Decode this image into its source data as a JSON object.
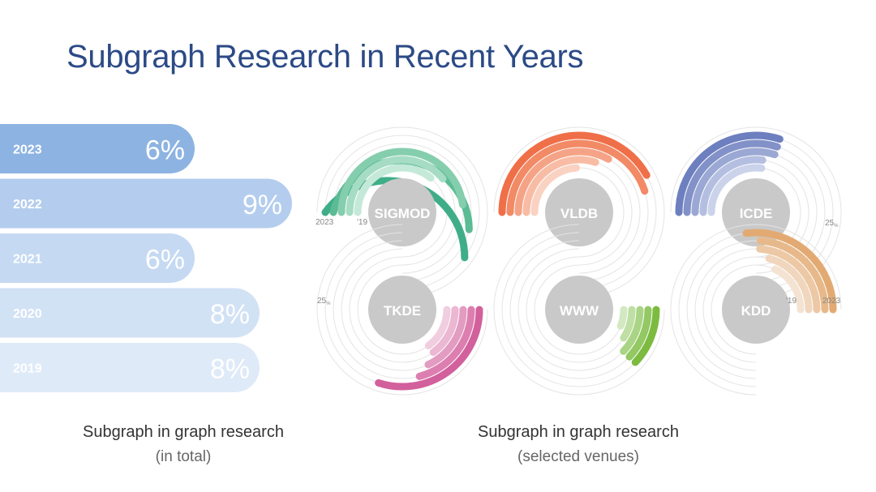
{
  "title": "Subgraph Research in Recent Years",
  "caption_left": {
    "line1": "Subgraph in graph research",
    "line2": "(in total)"
  },
  "caption_right": {
    "line1": "Subgraph in graph research",
    "line2": "(selected venues)"
  },
  "chart_data": [
    {
      "type": "bar",
      "orientation": "horizontal",
      "categories": [
        "2023",
        "2022",
        "2021",
        "2020",
        "2019"
      ],
      "values": [
        6,
        9,
        6,
        8,
        8
      ],
      "value_labels": [
        "6%",
        "9%",
        "6%",
        "8%",
        "8%"
      ],
      "unit": "%",
      "colors": [
        "#8db3e2",
        "#b4cdee",
        "#c5d9f2",
        "#d2e2f5",
        "#dfeaf8"
      ]
    },
    {
      "type": "radial_bar",
      "years": [
        "2023",
        "2022",
        "2021",
        "2020",
        "2019"
      ],
      "axis_labels": {
        "start": "2023",
        "end": "'19",
        "max": "25",
        "max_unit": "%"
      },
      "max": 25,
      "venues": [
        {
          "name": "SIGMOD",
          "values": [
            20,
            18,
            16,
            13,
            12
          ],
          "colors": [
            "#3fae88",
            "#5bbb95",
            "#85cead",
            "#a6dcc4",
            "#c4e9d8"
          ]
        },
        {
          "name": "VLDB",
          "values": [
            14,
            15,
            11,
            10,
            8
          ],
          "colors": [
            "#ef6f49",
            "#f28a66",
            "#f5a386",
            "#f8bca5",
            "#fad2c2"
          ]
        },
        {
          "name": "ICDE",
          "values": [
            10,
            10,
            10,
            9,
            9
          ],
          "colors": [
            "#6d7fbf",
            "#8291c8",
            "#9ba8d4",
            "#b4bee0",
            "#cbd3eb"
          ]
        },
        {
          "name": "TKDE",
          "values": [
            10,
            7,
            6,
            5,
            5
          ],
          "colors": [
            "#d2609c",
            "#dc7fb0",
            "#e39cc1",
            "#ebb7d2",
            "#f1cde0"
          ]
        },
        {
          "name": "WWW",
          "values": [
            4,
            4,
            4,
            3,
            2
          ],
          "colors": [
            "#7cbb3f",
            "#93c863",
            "#aad485",
            "#bfdfa5",
            "#d3e9c2"
          ]
        },
        {
          "name": "KDD",
          "values": [
            9,
            8,
            8,
            7,
            6
          ],
          "colors": [
            "#e2aa72",
            "#e7b98a",
            "#ecc8a4",
            "#f0d6bd",
            "#f4e3d2"
          ]
        }
      ]
    }
  ]
}
